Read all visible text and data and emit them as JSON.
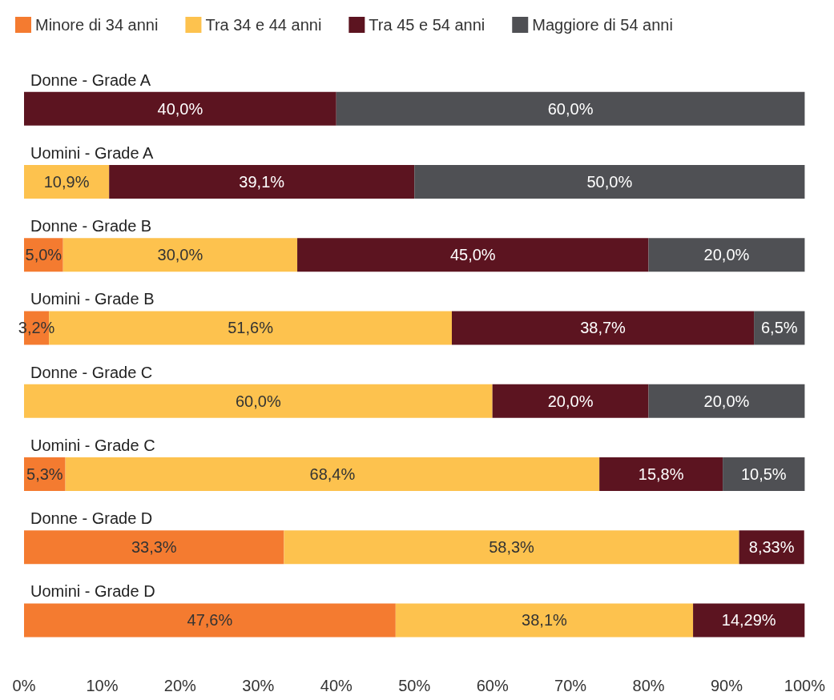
{
  "chart_data": {
    "type": "bar",
    "orientation": "horizontal",
    "stacked": true,
    "categories": [
      "Donne - Grade A",
      "Uomini - Grade A",
      "Donne - Grade B",
      "Uomini - Grade B",
      "Donne - Grade C",
      "Uomini - Grade C",
      "Donne - Grade D",
      "Uomini - Grade D"
    ],
    "series": [
      {
        "name": "Minore di 34 anni",
        "color": "#f47b30",
        "values": [
          null,
          null,
          5.0,
          3.2,
          null,
          5.3,
          33.3,
          47.6
        ],
        "value_labels": [
          null,
          null,
          "5,0%",
          "3,2%",
          null,
          "5,3%",
          "33,3%",
          "47,6%"
        ]
      },
      {
        "name": "Tra 34 e 44 anni",
        "color": "#fdc24e",
        "values": [
          null,
          10.9,
          30.0,
          51.6,
          60.0,
          68.4,
          58.3,
          38.1
        ],
        "value_labels": [
          null,
          "10,9%",
          "30,0%",
          "51,6%",
          "60,0%",
          "68,4%",
          "58,3%",
          "38,1%"
        ]
      },
      {
        "name": "Tra 45 e 54 anni",
        "color": "#5c1420",
        "values": [
          40.0,
          39.1,
          45.0,
          38.7,
          20.0,
          15.8,
          8.33,
          14.29
        ],
        "value_labels": [
          "40,0%",
          "39,1%",
          "45,0%",
          "38,7%",
          "20,0%",
          "15,8%",
          "8,33%",
          "14,29%"
        ]
      },
      {
        "name": "Maggiore di 54 anni",
        "color": "#4f5054",
        "values": [
          60.0,
          50.0,
          20.0,
          6.5,
          20.0,
          10.5,
          null,
          null
        ],
        "value_labels": [
          "60,0%",
          "50,0%",
          "20,0%",
          "6,5%",
          "20,0%",
          "10,5%",
          null,
          null
        ]
      }
    ],
    "xlim": [
      0,
      100
    ],
    "xticks": [
      {
        "value": 0,
        "label": "0%"
      },
      {
        "value": 10,
        "label": "10%"
      },
      {
        "value": 20,
        "label": "20%"
      },
      {
        "value": 30,
        "label": "30%"
      },
      {
        "value": 40,
        "label": "40%"
      },
      {
        "value": 50,
        "label": "50%"
      },
      {
        "value": 60,
        "label": "60%"
      },
      {
        "value": 70,
        "label": "70%"
      },
      {
        "value": 80,
        "label": "80%"
      },
      {
        "value": 90,
        "label": "90%"
      },
      {
        "value": 100,
        "label": "100%"
      }
    ],
    "grid": false,
    "legend": "top left"
  }
}
